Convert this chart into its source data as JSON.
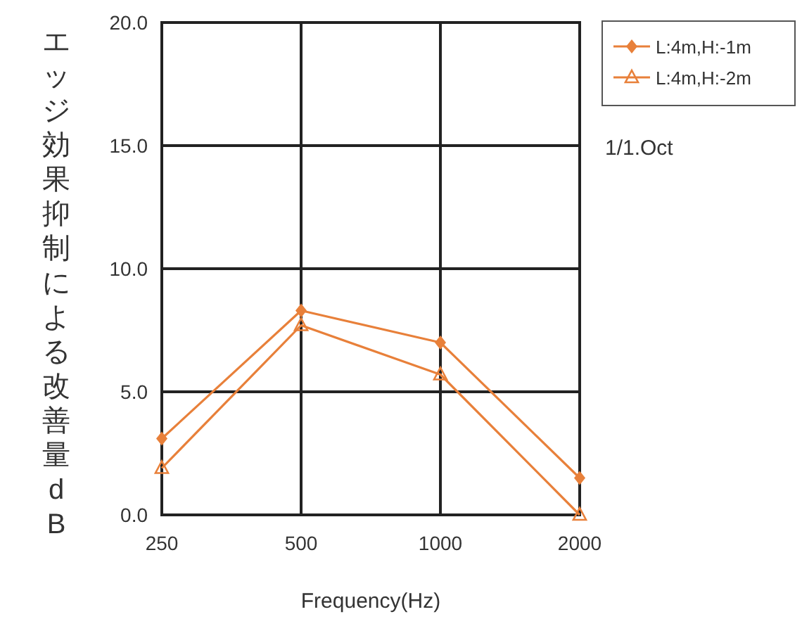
{
  "chart_data": {
    "type": "line",
    "xlabel": "Frequency(Hz)",
    "ylabel": "エッジ効果抑制による改善量dB",
    "categories": [
      "250",
      "500",
      "1000",
      "2000"
    ],
    "series": [
      {
        "name": "L:4m,H:-1m",
        "color": "#e8803a",
        "marker": "diamond",
        "values": [
          3.1,
          8.3,
          7.0,
          1.5
        ]
      },
      {
        "name": "L:4m,H:-2m",
        "color": "#e8803a",
        "marker": "triangle",
        "values": [
          1.9,
          7.7,
          5.7,
          0.0
        ]
      }
    ],
    "ylim": [
      0,
      20
    ],
    "yticks": [
      {
        "value": 0,
        "label": "0.0"
      },
      {
        "value": 5,
        "label": "5.0"
      },
      {
        "value": 10,
        "label": "10.0"
      },
      {
        "value": 15,
        "label": "15.0"
      },
      {
        "value": 20,
        "label": "20.0"
      }
    ],
    "grid": true,
    "legend": "top right",
    "annotations": [
      "1/1.Oct"
    ]
  }
}
